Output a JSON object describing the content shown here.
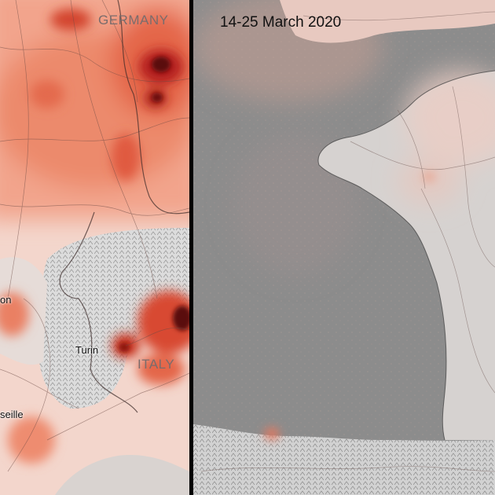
{
  "left_panel": {
    "country_labels": {
      "germany": "GERMANY",
      "italy": "ITALY"
    },
    "city_labels": {
      "turin": "Turin",
      "lyon_partial": "on",
      "marseille_partial": "seille"
    }
  },
  "right_panel": {
    "period_label": "14-25 March 2020"
  },
  "colors": {
    "high_no2": "#5a0a0a",
    "mid_no2": "#e0573a",
    "low_no2": "#f6c4b0",
    "background_land": "#d8d8d8",
    "sea": "#8c8c8c",
    "divider": "#000000"
  }
}
